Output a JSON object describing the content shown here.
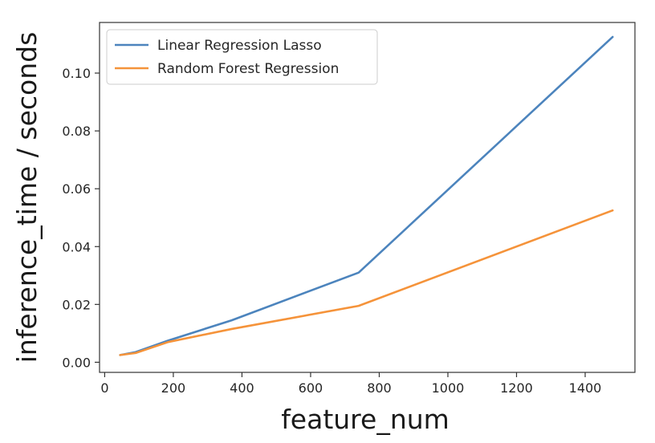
{
  "chart_data": {
    "type": "line",
    "xlabel": "feature_num",
    "ylabel": "inference_time / seconds",
    "xlim": [
      -15,
      1545
    ],
    "ylim": [
      -0.0035,
      0.1175
    ],
    "xticks": [
      0,
      200,
      400,
      600,
      800,
      1000,
      1200,
      1400
    ],
    "xtick_labels": [
      "0",
      "200",
      "400",
      "600",
      "800",
      "1000",
      "1200",
      "1400"
    ],
    "yticks": [
      0.0,
      0.02,
      0.04,
      0.06,
      0.08,
      0.1
    ],
    "ytick_labels": [
      "0.00",
      "0.02",
      "0.04",
      "0.06",
      "0.08",
      "0.10"
    ],
    "grid": false,
    "legend_position": "top-left",
    "series": [
      {
        "name": "Linear Regression Lasso",
        "color": "#4c84bd",
        "x": [
          45,
          90,
          185,
          370,
          740,
          1480
        ],
        "y": [
          0.0025,
          0.0035,
          0.0075,
          0.0145,
          0.031,
          0.1125
        ]
      },
      {
        "name": "Random Forest Regression",
        "color": "#f5933a",
        "x": [
          45,
          90,
          185,
          370,
          740,
          1480
        ],
        "y": [
          0.0025,
          0.0032,
          0.007,
          0.0115,
          0.0195,
          0.0525
        ]
      }
    ]
  }
}
